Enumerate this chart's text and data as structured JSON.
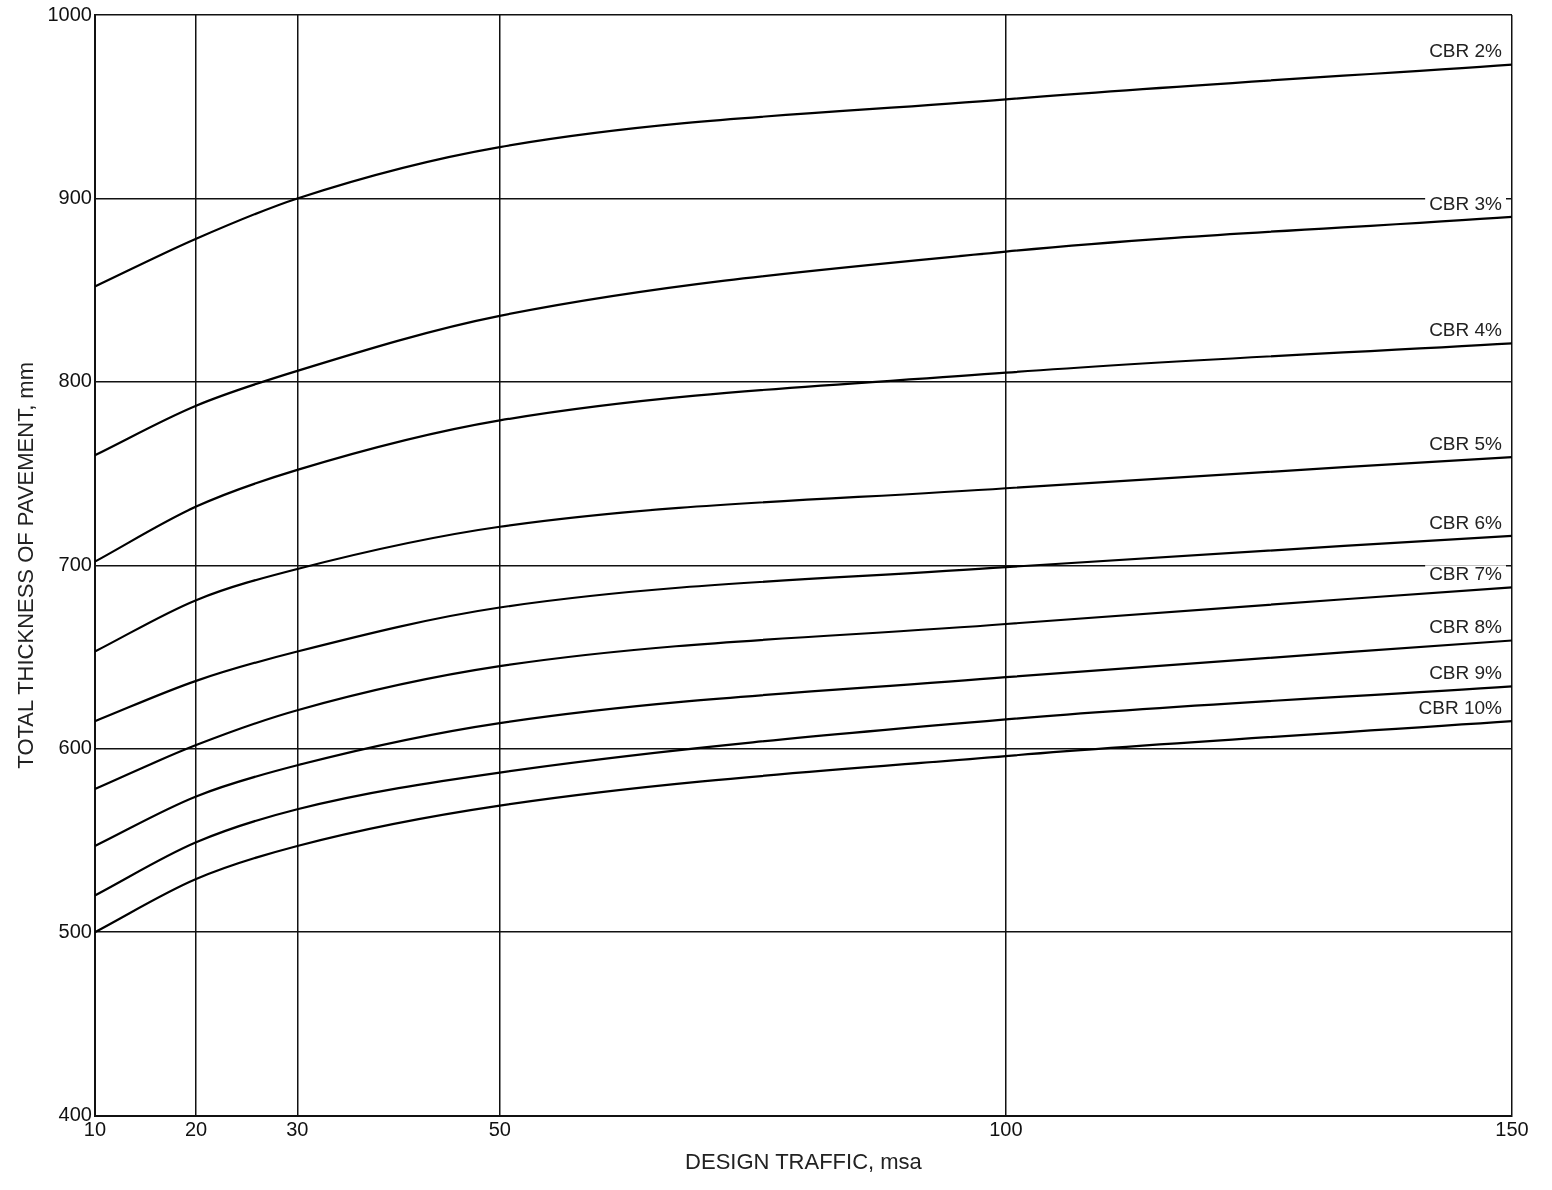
{
  "chart_data": {
    "type": "line",
    "xlabel": "DESIGN TRAFFIC, msa",
    "ylabel": "TOTAL THICKNESS OF PAVEMENT, mm",
    "x": [
      10,
      20,
      30,
      50,
      100,
      150
    ],
    "xlim": [
      10,
      150
    ],
    "xticks": [
      10,
      20,
      30,
      50,
      100,
      150
    ],
    "ylim": [
      400,
      1000
    ],
    "yticks": [
      400,
      500,
      600,
      700,
      800,
      900,
      1000
    ],
    "grid": true,
    "legend": false,
    "marker": "none",
    "line_style": "solid",
    "series": [
      {
        "name": "CBR 2%",
        "color": "#000000",
        "values": [
          852,
          878,
          900,
          928,
          954,
          973
        ]
      },
      {
        "name": "CBR 3%",
        "color": "#000000",
        "values": [
          760,
          787,
          806,
          836,
          871,
          890
        ]
      },
      {
        "name": "CBR 4%",
        "color": "#000000",
        "values": [
          702,
          732,
          752,
          779,
          805,
          821
        ]
      },
      {
        "name": "CBR 5%",
        "color": "#000000",
        "values": [
          653,
          681,
          698,
          721,
          742,
          759
        ]
      },
      {
        "name": "CBR 6%",
        "color": "#000000",
        "values": [
          615,
          637,
          653,
          677,
          699,
          716
        ]
      },
      {
        "name": "CBR 7%",
        "color": "#000000",
        "values": [
          578,
          602,
          621,
          645,
          668,
          688
        ]
      },
      {
        "name": "CBR 8%",
        "color": "#000000",
        "values": [
          547,
          574,
          591,
          614,
          639,
          659
        ]
      },
      {
        "name": "CBR 9%",
        "color": "#000000",
        "values": [
          520,
          549,
          567,
          587,
          616,
          634
        ]
      },
      {
        "name": "CBR 10%",
        "color": "#000000",
        "values": [
          500,
          529,
          547,
          569,
          596,
          615
        ]
      }
    ]
  }
}
